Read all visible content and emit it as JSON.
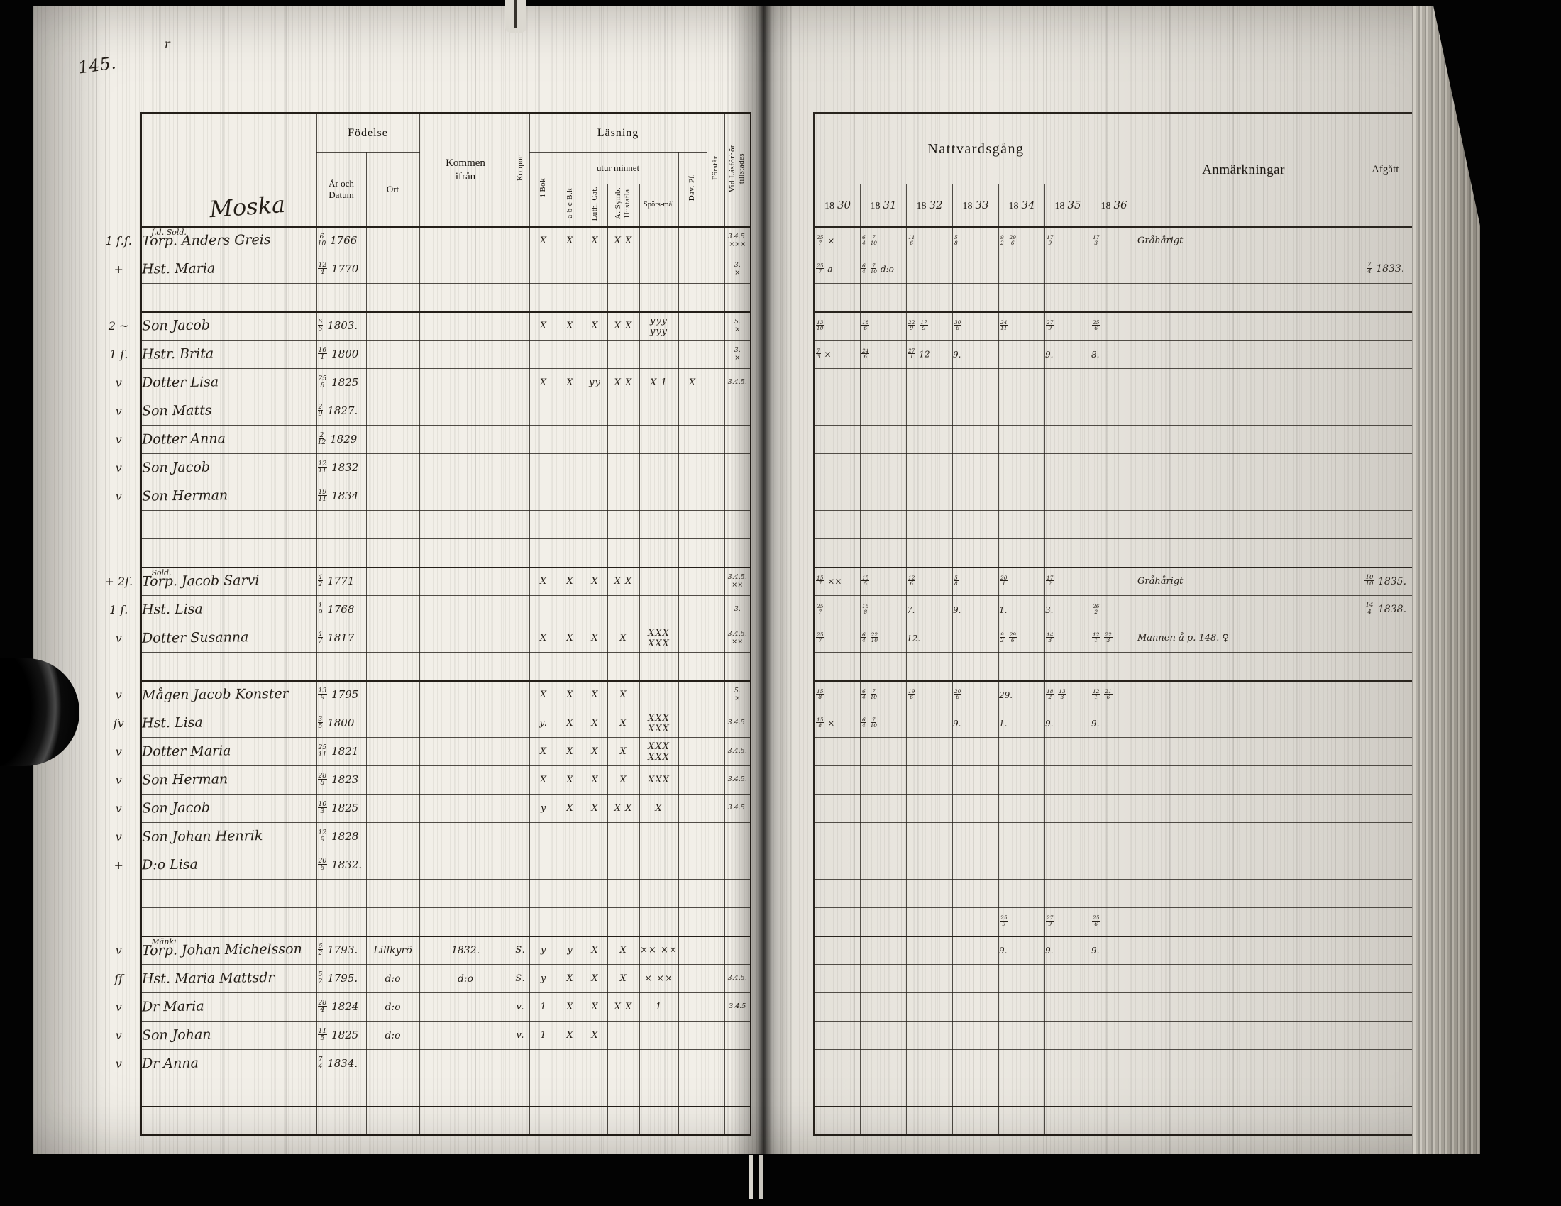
{
  "page": {
    "number": "145.",
    "stray_mark": "r"
  },
  "left_table": {
    "group_title": "Moska",
    "headers": {
      "fodelse": "Födelse",
      "ar_och_datum": "År och Datum",
      "ort": "Ort",
      "kommen_ifran": "Kommen ifrån",
      "koppor": "Koppor",
      "lasning": "Läsning",
      "i_bok": "i Bok",
      "utur_minnet": "utur minnet",
      "abc": "a b c B.k",
      "luth": "Luth. Cat.",
      "symb_1": "A. Symb.",
      "symb_2": "Hustafla",
      "spors": "Spörs-mål",
      "dav": "Dav. Pſ.",
      "forstar": "Förstår",
      "tillstades_1": "Vid Läsförhör",
      "tillstades_2": "tillstädes"
    }
  },
  "right_table": {
    "headers": {
      "nattvardsgang": "Nattvardsgång",
      "anmarkningar": "Anmärkningar",
      "afgatt": "Afgått"
    },
    "year_prefix": "18",
    "years": [
      "30",
      "31",
      "32",
      "33",
      "34",
      "35",
      "36"
    ]
  },
  "rows": [
    {
      "m": "1 ſ.ſ.",
      "note": "f.d. Sold.",
      "name": "Torp. Anders Greis",
      "d": "6/10",
      "y": "1766",
      "ib": "X",
      "abc": "X",
      "lu": "X",
      "sy": "X X",
      "ti": "3.4.5. ×××",
      "n": [
        "25/7 ×",
        "6/4 7/10",
        "11/6",
        "5/8",
        "9/2 29/6",
        "17/9",
        "17/3"
      ],
      "anm": "Gråhårigt",
      "hb": true
    },
    {
      "m": "+",
      "name": "Hst. Maria",
      "d": "12/4",
      "y": "1770",
      "ti": "3. ×",
      "n": [
        "25/7 a",
        "6/4 7/10 d:o",
        "",
        "",
        "",
        "",
        ""
      ],
      "af": "7/4 1833."
    },
    {},
    {
      "m": "2 ~",
      "name": "Son Jacob",
      "d": "6/6",
      "y": "1803.",
      "ib": "X",
      "abc": "X",
      "lu": "X",
      "sy": "X X",
      "sp": "yyy yyy",
      "ti": "5. ×",
      "n": [
        "13/10",
        "18/6",
        "22/9 17/9",
        "30/6",
        "24/11",
        "27/9",
        "25/6"
      ],
      "hb": true
    },
    {
      "m": "1 ſ.",
      "name": "Hstr. Brita",
      "d": "16/1",
      "y": "1800",
      "ti": "3. ×",
      "n": [
        "7/3 ×",
        "24/6",
        "27/1 12",
        "9.",
        "",
        "9.",
        "8."
      ]
    },
    {
      "m": "v",
      "name": "Dotter Lisa",
      "d": "25/8",
      "y": "1825",
      "ib": "X",
      "abc": "X",
      "lu": "yy",
      "sy": "X X",
      "sp": "X 1",
      "dv": "X",
      "ti": "3.4.5."
    },
    {
      "m": "v",
      "name": "Son Matts",
      "d": "2/9",
      "y": "1827."
    },
    {
      "m": "v",
      "name": "Dotter Anna",
      "d": "2/12",
      "y": "1829"
    },
    {
      "m": "v",
      "name": "Son Jacob",
      "d": "12/11",
      "y": "1832"
    },
    {
      "m": "v",
      "name": "Son Herman",
      "d": "19/11",
      "y": "1834"
    },
    {},
    {},
    {
      "m": "+ 2ſ.",
      "note": "Sold.",
      "name": "Torp. Jacob Sarvi",
      "d": "4/2",
      "y": "1771",
      "ib": "X",
      "abc": "X",
      "lu": "X",
      "sy": "X X",
      "ti": "3.4.5. ××",
      "n": [
        "15/7 ××",
        "15/5",
        "12/6",
        "5/8",
        "20/1",
        "17/2",
        ""
      ],
      "anm": "Gråhårigt",
      "af": "10/10 1835.",
      "hb": true
    },
    {
      "m": "1 ſ.",
      "name": "Hst. Lisa",
      "d": "1/9",
      "y": "1768",
      "ti": "3.",
      "n": [
        "25/7",
        "15/8",
        "7.",
        "9.",
        "1.",
        "3.",
        "26/2"
      ],
      "af": "14/4 1838."
    },
    {
      "m": "v",
      "name": "Dotter Susanna",
      "d": "4/7",
      "y": "1817",
      "ib": "X",
      "abc": "X",
      "lu": "X",
      "sy": "X",
      "sp": "XXX XXX",
      "ti": "3.4.5. ××",
      "n": [
        "25/7",
        "6/4 22/10",
        "12.",
        "",
        "9/2 29/6",
        "14/3",
        "12/1 22/3"
      ],
      "anm": "Mannen å p. 148. ♀"
    },
    {},
    {
      "m": "v",
      "name": "Mågen Jacob Konster",
      "d": "13/9",
      "y": "1795",
      "ib": "X",
      "abc": "X",
      "lu": "X",
      "sy": "X",
      "ti": "5. ×",
      "n": [
        "15/8",
        "6/4 7/10",
        "19/6",
        "20/6",
        "29.",
        "18/2 13/3",
        "12/1 21/6"
      ],
      "hb": true
    },
    {
      "m": "ſv",
      "name": "Hst. Lisa",
      "d": "3/5",
      "y": "1800",
      "ib": "y.",
      "abc": "X",
      "lu": "X",
      "sy": "X",
      "sp": "XXX XXX",
      "ti": "3.4.5.",
      "n": [
        "15/8 ×",
        "6/4 7/10",
        "",
        "9.",
        "1.",
        "9.",
        "9."
      ]
    },
    {
      "m": "v",
      "name": "Dotter Maria",
      "d": "25/11",
      "y": "1821",
      "ib": "X",
      "abc": "X",
      "lu": "X",
      "sy": "X",
      "sp": "XXX XXX",
      "ti": "3.4.5."
    },
    {
      "m": "v",
      "name": "Son Herman",
      "d": "28/8",
      "y": "1823",
      "ib": "X",
      "abc": "X",
      "lu": "X",
      "sy": "X",
      "sp": "XXX",
      "ti": "3.4.5."
    },
    {
      "m": "v",
      "name": "Son Jacob",
      "d": "10/3",
      "y": "1825",
      "ib": "y",
      "abc": "X",
      "lu": "X",
      "sy": "X X",
      "sp": "X",
      "ti": "3.4.5."
    },
    {
      "m": "v",
      "name": "Son Johan Henrik",
      "d": "12/9",
      "y": "1828"
    },
    {
      "m": "+",
      "name": "D:o Lisa",
      "d": "20/6",
      "y": "1832."
    },
    {},
    {
      "n": [
        "",
        "",
        "",
        "",
        "25/9",
        "27/9",
        "25/6"
      ]
    },
    {
      "m": "v",
      "note": "Mänki",
      "name": "Torp. Johan Michelsson",
      "d": "6/2",
      "y": "1793.",
      "ort": "Lillkyrö",
      "kf": "1832.",
      "kop": "S.",
      "ib": "y",
      "abc": "y",
      "lu": "X",
      "sy": "X",
      "sp": "×× ××",
      "n": [
        "",
        "",
        "",
        "",
        "9.",
        "9.",
        "9."
      ],
      "hb": true
    },
    {
      "m": "ſſ",
      "name": "Hst. Maria Mattsdr",
      "d": "5/2",
      "y": "1795.",
      "ort": "d:o",
      "kf": "d:o",
      "kop": "S.",
      "ib": "y",
      "abc": "X",
      "lu": "X",
      "sy": "X",
      "sp": "× ××",
      "ti": "3.4.5."
    },
    {
      "m": "v",
      "name": "Dr Maria",
      "d": "28/4",
      "y": "1824",
      "ort": "d:o",
      "kop": "v.",
      "ib": "1",
      "abc": "X",
      "lu": "X",
      "sy": "X X",
      "sp": "1",
      "ti": "3.4.5"
    },
    {
      "m": "v",
      "name": "Son Johan",
      "d": "11/5",
      "y": "1825",
      "ort": "d:o",
      "kop": "v.",
      "ib": "1",
      "abc": "X",
      "lu": "X"
    },
    {
      "m": "v",
      "name": "Dr Anna",
      "d": "7/4",
      "y": "1834."
    },
    {},
    {
      "hb": true
    }
  ]
}
